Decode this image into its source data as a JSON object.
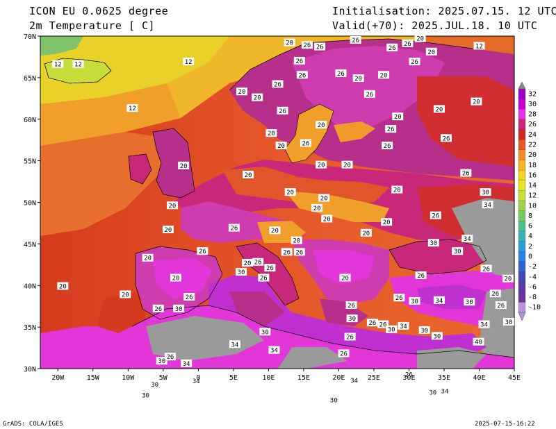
{
  "header": {
    "model": "ICON EU 0.0625 degree",
    "field": "2m Temperature [ C]",
    "init": "Initialisation: 2025.07.15. 12 UTC",
    "valid": "Valid(+70): 2025.JUL.18. 10 UTC"
  },
  "footer": {
    "left": "GrADS: COLA/IGES",
    "right": "2025-07-15-16:22"
  },
  "axes": {
    "lon": [
      "20W",
      "15W",
      "10W",
      "5W",
      "0",
      "5E",
      "10E",
      "15E",
      "20E",
      "25E",
      "30E",
      "35E",
      "40E",
      "45E"
    ],
    "lat": [
      "70N",
      "65N",
      "60N",
      "55N",
      "50N",
      "45N",
      "40N",
      "35N",
      "30N"
    ]
  },
  "colorbar": {
    "levels": [
      "32",
      "30",
      "28",
      "26",
      "24",
      "22",
      "20",
      "18",
      "16",
      "14",
      "12",
      "10",
      "8",
      "6",
      "4",
      "2",
      "0",
      "-2",
      "-4",
      "-6",
      "-8",
      "-10"
    ],
    "colors": [
      "#a000c8",
      "#c800c8",
      "#e632e6",
      "#c8287a",
      "#d22828",
      "#e65a28",
      "#f08c28",
      "#f5b428",
      "#f0d228",
      "#e6e628",
      "#c8dc3c",
      "#a0d250",
      "#78c864",
      "#50be8c",
      "#3cb4b4",
      "#28a0d2",
      "#2882e6",
      "#3264c8",
      "#4646b4",
      "#5a3ca0",
      "#6e329b",
      "#b496d2"
    ]
  },
  "contour_labels": [
    {
      "t": "20",
      "lon": 13.0,
      "lat": 69.2
    },
    {
      "t": "26",
      "lon": 15.5,
      "lat": 68.9
    },
    {
      "t": "26",
      "lon": 17.3,
      "lat": 68.7
    },
    {
      "t": "26",
      "lon": 22.4,
      "lat": 69.5
    },
    {
      "t": "20",
      "lon": 31.6,
      "lat": 69.7
    },
    {
      "t": "26",
      "lon": 29.8,
      "lat": 69.1
    },
    {
      "t": "26",
      "lon": 27.6,
      "lat": 68.6
    },
    {
      "t": "12",
      "lon": 40.0,
      "lat": 68.8
    },
    {
      "t": "20",
      "lon": 33.2,
      "lat": 68.1
    },
    {
      "t": "26",
      "lon": 30.8,
      "lat": 66.9
    },
    {
      "t": "26",
      "lon": 14.4,
      "lat": 67.0
    },
    {
      "t": "26",
      "lon": 14.8,
      "lat": 65.3
    },
    {
      "t": "26",
      "lon": 20.3,
      "lat": 65.5
    },
    {
      "t": "20",
      "lon": 22.8,
      "lat": 64.9
    },
    {
      "t": "20",
      "lon": 26.4,
      "lat": 65.3
    },
    {
      "t": "20",
      "lon": 6.2,
      "lat": 63.3
    },
    {
      "t": "26",
      "lon": 11.3,
      "lat": 64.2
    },
    {
      "t": "20",
      "lon": 8.4,
      "lat": 62.6
    },
    {
      "t": "26",
      "lon": 24.4,
      "lat": 63.0
    },
    {
      "t": "26",
      "lon": 12.0,
      "lat": 61.0
    },
    {
      "t": "20",
      "lon": 34.3,
      "lat": 61.2
    },
    {
      "t": "20",
      "lon": 39.6,
      "lat": 62.1
    },
    {
      "t": "20",
      "lon": 28.4,
      "lat": 60.3
    },
    {
      "t": "20",
      "lon": 17.5,
      "lat": 59.3
    },
    {
      "t": "26",
      "lon": 27.4,
      "lat": 58.8
    },
    {
      "t": "20",
      "lon": 10.4,
      "lat": 58.3
    },
    {
      "t": "26",
      "lon": 15.3,
      "lat": 57.1
    },
    {
      "t": "20",
      "lon": 11.8,
      "lat": 56.8
    },
    {
      "t": "26",
      "lon": 35.3,
      "lat": 57.7
    },
    {
      "t": "26",
      "lon": 26.9,
      "lat": 56.8
    },
    {
      "t": "20",
      "lon": -2.1,
      "lat": 54.4
    },
    {
      "t": "20",
      "lon": 17.5,
      "lat": 54.5
    },
    {
      "t": "20",
      "lon": 21.2,
      "lat": 54.5
    },
    {
      "t": "20",
      "lon": 7.1,
      "lat": 53.3
    },
    {
      "t": "26",
      "lon": 38.1,
      "lat": 53.5
    },
    {
      "t": "20",
      "lon": 13.1,
      "lat": 51.2
    },
    {
      "t": "20",
      "lon": 28.3,
      "lat": 51.5
    },
    {
      "t": "20",
      "lon": 17.9,
      "lat": 50.5
    },
    {
      "t": "30",
      "lon": 40.9,
      "lat": 51.2
    },
    {
      "t": "34",
      "lon": 41.2,
      "lat": 49.7
    },
    {
      "t": "20",
      "lon": -3.7,
      "lat": 49.6
    },
    {
      "t": "20",
      "lon": 16.9,
      "lat": 49.3
    },
    {
      "t": "20",
      "lon": 18.3,
      "lat": 48.0
    },
    {
      "t": "26",
      "lon": 33.8,
      "lat": 48.4
    },
    {
      "t": "20",
      "lon": 26.8,
      "lat": 47.6
    },
    {
      "t": "26",
      "lon": 5.1,
      "lat": 46.9
    },
    {
      "t": "20",
      "lon": -4.3,
      "lat": 46.7
    },
    {
      "t": "20",
      "lon": 10.9,
      "lat": 46.6
    },
    {
      "t": "20",
      "lon": 14.0,
      "lat": 45.4
    },
    {
      "t": "20",
      "lon": 23.9,
      "lat": 46.3
    },
    {
      "t": "34",
      "lon": 38.3,
      "lat": 45.6
    },
    {
      "t": "30",
      "lon": 33.5,
      "lat": 45.1
    },
    {
      "t": "26",
      "lon": 0.6,
      "lat": 44.1
    },
    {
      "t": "26",
      "lon": 12.6,
      "lat": 44.0
    },
    {
      "t": "26",
      "lon": 14.4,
      "lat": 44.0
    },
    {
      "t": "30",
      "lon": 36.9,
      "lat": 44.1
    },
    {
      "t": "20",
      "lon": -7.2,
      "lat": 43.3
    },
    {
      "t": "20",
      "lon": 7.0,
      "lat": 42.7
    },
    {
      "t": "26",
      "lon": 8.5,
      "lat": 42.8
    },
    {
      "t": "26",
      "lon": 10.2,
      "lat": 42.1
    },
    {
      "t": "30",
      "lon": 6.1,
      "lat": 41.6
    },
    {
      "t": "26",
      "lon": 9.3,
      "lat": 40.9
    },
    {
      "t": "20",
      "lon": -3.2,
      "lat": 40.9
    },
    {
      "t": "20",
      "lon": 20.9,
      "lat": 40.9
    },
    {
      "t": "26",
      "lon": 31.7,
      "lat": 41.2
    },
    {
      "t": "26",
      "lon": 41.0,
      "lat": 42.0
    },
    {
      "t": "20",
      "lon": 44.1,
      "lat": 40.8
    },
    {
      "t": "20",
      "lon": -19.3,
      "lat": 39.9
    },
    {
      "t": "26",
      "lon": -1.3,
      "lat": 38.6
    },
    {
      "t": "20",
      "lon": -10.4,
      "lat": 38.9
    },
    {
      "t": "26",
      "lon": 28.6,
      "lat": 38.5
    },
    {
      "t": "30",
      "lon": 30.8,
      "lat": 38.1
    },
    {
      "t": "34",
      "lon": 34.3,
      "lat": 38.2
    },
    {
      "t": "26",
      "lon": 42.3,
      "lat": 39.0
    },
    {
      "t": "30",
      "lon": 38.6,
      "lat": 38.0
    },
    {
      "t": "26",
      "lon": 43.1,
      "lat": 37.6
    },
    {
      "t": "26",
      "lon": -5.7,
      "lat": 37.2
    },
    {
      "t": "30",
      "lon": -2.8,
      "lat": 37.2
    },
    {
      "t": "26",
      "lon": 21.8,
      "lat": 37.6
    },
    {
      "t": "30",
      "lon": 21.9,
      "lat": 36.0
    },
    {
      "t": "26",
      "lon": 24.8,
      "lat": 35.5
    },
    {
      "t": "26",
      "lon": 26.3,
      "lat": 35.3
    },
    {
      "t": "30",
      "lon": 27.5,
      "lat": 34.7
    },
    {
      "t": "34",
      "lon": 29.2,
      "lat": 35.1
    },
    {
      "t": "30",
      "lon": 32.2,
      "lat": 34.6
    },
    {
      "t": "34",
      "lon": 40.7,
      "lat": 35.3
    },
    {
      "t": "30",
      "lon": 44.2,
      "lat": 35.6
    },
    {
      "t": "30",
      "lon": 9.5,
      "lat": 34.4
    },
    {
      "t": "26",
      "lon": 21.6,
      "lat": 33.8
    },
    {
      "t": "30",
      "lon": 34.0,
      "lat": 33.9
    },
    {
      "t": "40",
      "lon": 39.9,
      "lat": 33.2
    },
    {
      "t": "34",
      "lon": 5.2,
      "lat": 32.9
    },
    {
      "t": "34",
      "lon": 10.8,
      "lat": 32.2
    },
    {
      "t": "26",
      "lon": 20.7,
      "lat": 31.8
    },
    {
      "t": "26",
      "lon": -4.0,
      "lat": 31.4
    },
    {
      "t": "30",
      "lon": -5.2,
      "lat": 30.9
    },
    {
      "t": "34",
      "lon": -1.7,
      "lat": 30.6
    },
    {
      "t": "34",
      "lon": 22.2,
      "lat": 28.6
    },
    {
      "t": "26",
      "lon": 30.0,
      "lat": 29.3
    },
    {
      "t": "34",
      "lon": -0.3,
      "lat": 28.5
    },
    {
      "t": "30",
      "lon": -6.2,
      "lat": 28.1
    },
    {
      "t": "30",
      "lon": 33.4,
      "lat": 27.1
    },
    {
      "t": "34",
      "lon": 35.1,
      "lat": 27.3
    },
    {
      "t": "30",
      "lon": -7.5,
      "lat": 26.8
    },
    {
      "t": "30",
      "lon": 19.3,
      "lat": 26.2
    },
    {
      "t": "12",
      "lon": -20.0,
      "lat": 66.6
    },
    {
      "t": "12",
      "lon": -17.1,
      "lat": 66.6
    },
    {
      "t": "12",
      "lon": -1.4,
      "lat": 66.9
    },
    {
      "t": "12",
      "lon": -9.4,
      "lat": 61.3
    }
  ]
}
